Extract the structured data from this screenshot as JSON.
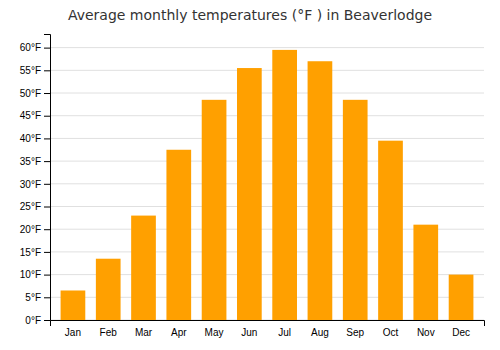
{
  "chart_data": {
    "type": "bar",
    "title": "Average monthly temperatures (°F ) in Beaverlodge",
    "categories": [
      "Jan",
      "Feb",
      "Mar",
      "Apr",
      "May",
      "Jun",
      "Jul",
      "Aug",
      "Sep",
      "Oct",
      "Nov",
      "Dec"
    ],
    "values": [
      6.5,
      13.5,
      23.0,
      37.5,
      48.5,
      55.5,
      59.5,
      57.0,
      48.5,
      39.5,
      21.0,
      10.0
    ],
    "color": "#FFA000",
    "ylim": [
      0,
      63
    ],
    "yticks": [
      {
        "value": 0,
        "label": "0°F"
      },
      {
        "value": 5,
        "label": "5°F"
      },
      {
        "value": 10,
        "label": "10°F"
      },
      {
        "value": 15,
        "label": "15°F"
      },
      {
        "value": 20,
        "label": "20°F"
      },
      {
        "value": 25,
        "label": "25°F"
      },
      {
        "value": 30,
        "label": "30°F"
      },
      {
        "value": 35,
        "label": "35°F"
      },
      {
        "value": 40,
        "label": "40°F"
      },
      {
        "value": 45,
        "label": "45°F"
      },
      {
        "value": 50,
        "label": "50°F"
      },
      {
        "value": 55,
        "label": "55°F"
      },
      {
        "value": 60,
        "label": "60°F"
      }
    ],
    "grid": true
  }
}
